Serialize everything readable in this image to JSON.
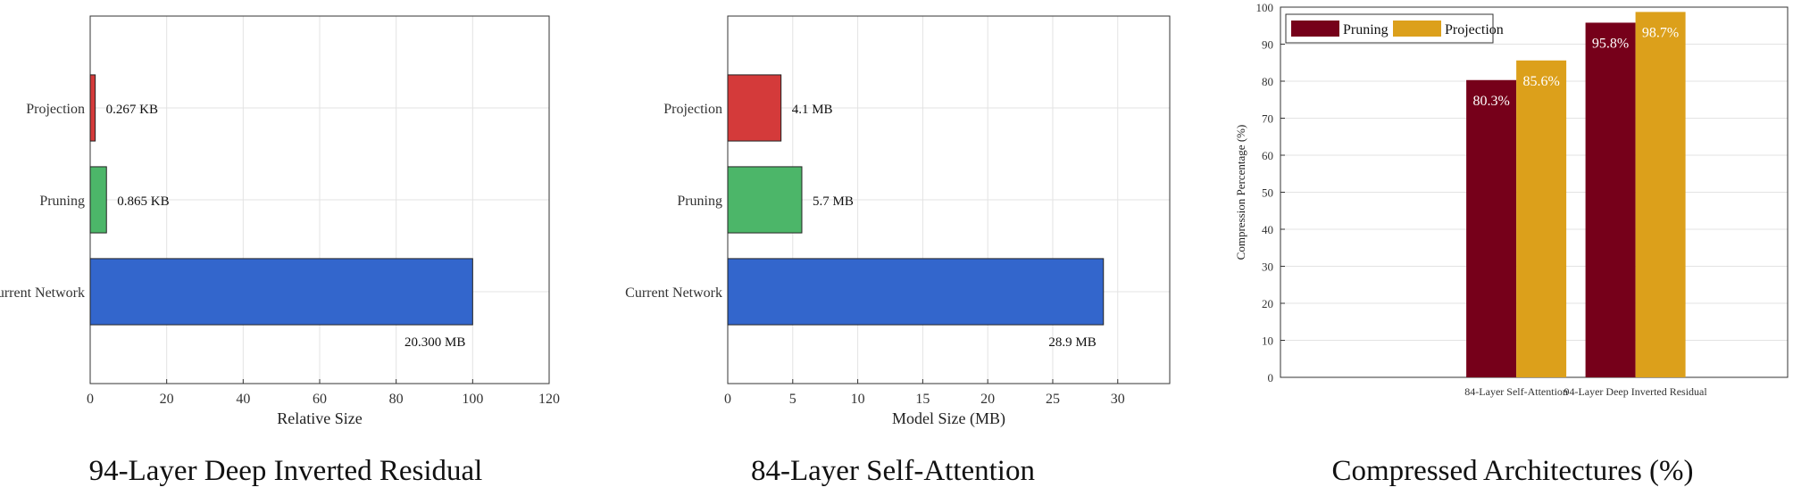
{
  "chart_data": [
    {
      "type": "bar",
      "orientation": "horizontal",
      "title": "94-Layer Deep Inverted Residual",
      "xlabel": "Relative Size",
      "ylabel": "",
      "categories": [
        "Current Network",
        "Pruning",
        "Projection"
      ],
      "values": [
        100,
        4.26,
        1.32
      ],
      "value_labels": [
        "20.300 MB",
        "0.865 KB",
        "0.267 KB"
      ],
      "colors": [
        "#3366cc",
        "#4cb669",
        "#d43a3a"
      ],
      "xlim": [
        0,
        120
      ],
      "xticks": [
        "0",
        "20",
        "40",
        "60",
        "80",
        "100",
        "120"
      ],
      "grid": true
    },
    {
      "type": "bar",
      "orientation": "horizontal",
      "title": "84-Layer Self-Attention",
      "xlabel": "Model Size (MB)",
      "ylabel": "",
      "categories": [
        "Current Network",
        "Pruning",
        "Projection"
      ],
      "values": [
        28.9,
        5.7,
        4.1
      ],
      "value_labels": [
        "28.9 MB",
        "5.7 MB",
        "4.1 MB"
      ],
      "colors": [
        "#3366cc",
        "#4cb669",
        "#d43a3a"
      ],
      "xlim": [
        0,
        34
      ],
      "xticks": [
        "0",
        "5",
        "10",
        "15",
        "20",
        "25",
        "30"
      ],
      "grid": true
    },
    {
      "type": "bar",
      "orientation": "vertical",
      "title": "Compressed Architectures (%)",
      "xlabel": "",
      "ylabel": "Compression Percentage (%)",
      "categories": [
        "84-Layer Self-Attention",
        "94-Layer Deep Inverted Residual"
      ],
      "series": [
        {
          "name": "Pruning",
          "values": [
            80.3,
            95.8
          ],
          "labels": [
            "80.3%",
            "95.8%"
          ],
          "color": "#76001a"
        },
        {
          "name": "Projection",
          "values": [
            85.6,
            98.7
          ],
          "labels": [
            "85.6%",
            "98.7%"
          ],
          "color": "#dca01b"
        }
      ],
      "ylim": [
        0,
        100
      ],
      "yticks": [
        "0",
        "10",
        "20",
        "30",
        "40",
        "50",
        "60",
        "70",
        "80",
        "90",
        "100"
      ],
      "legend": "top-left",
      "grid": true
    }
  ]
}
